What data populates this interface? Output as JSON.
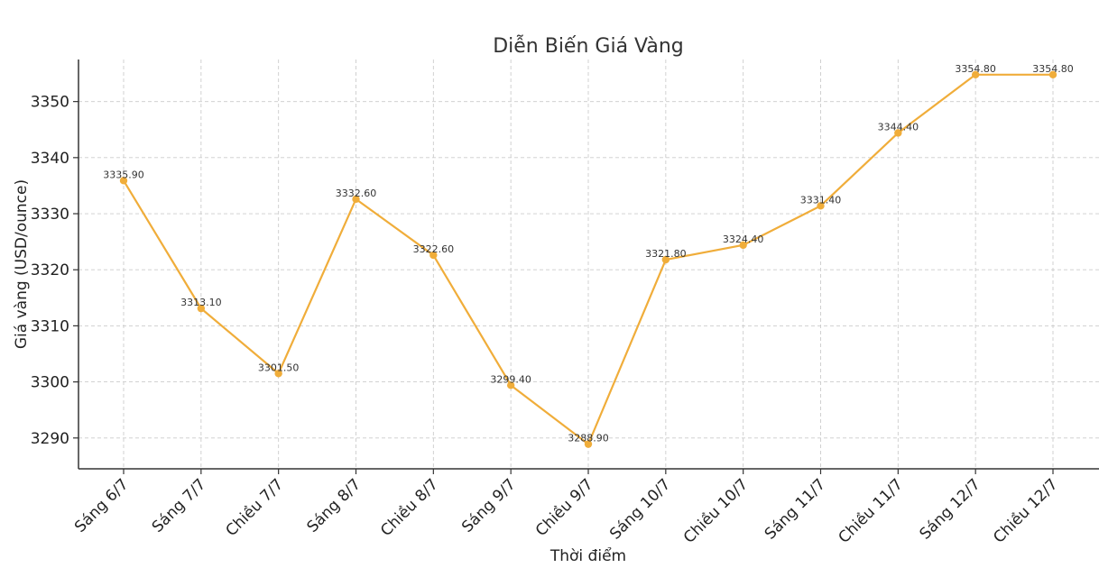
{
  "chart_data": {
    "type": "line",
    "title": "Diễn Biến Giá Vàng",
    "xlabel": "Thời điểm",
    "ylabel": "Giá vàng (USD/ounce)",
    "categories": [
      "Sáng 6/7",
      "Sáng 7/7",
      "Chiều 7/7",
      "Sáng 8/7",
      "Chiều 8/7",
      "Sáng 9/7",
      "Chiều 9/7",
      "Sáng 10/7",
      "Chiều 10/7",
      "Sáng 11/7",
      "Chiều 11/7",
      "Sáng 12/7",
      "Chiều 12/7"
    ],
    "series": [
      {
        "values": [
          3335.9,
          3313.1,
          3301.5,
          3332.6,
          3322.6,
          3299.4,
          3288.9,
          3321.8,
          3324.4,
          3331.4,
          3344.4,
          3354.8,
          3354.8
        ],
        "labels": [
          "3335.90",
          "3313.10",
          "3301.50",
          "3332.60",
          "3322.60",
          "3299.40",
          "3288.90",
          "3321.80",
          "3324.40",
          "3331.40",
          "3344.40",
          "3354.80",
          "3354.80"
        ],
        "color": "#f0ad3a"
      }
    ],
    "y_ticks": [
      3290,
      3300,
      3310,
      3320,
      3330,
      3340,
      3350
    ],
    "ylim": [
      3284.5,
      3357.5
    ],
    "grid": true,
    "legend": "none"
  }
}
